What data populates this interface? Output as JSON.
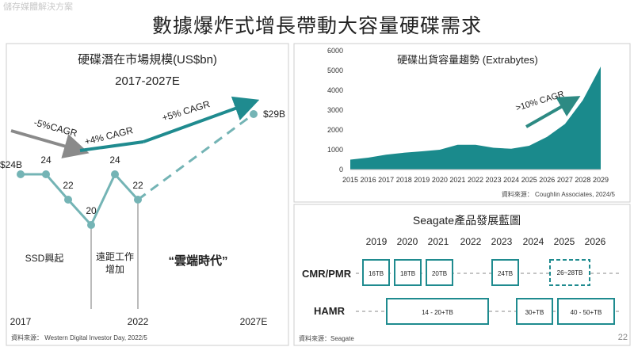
{
  "header": {
    "corner_label": "儲存媒體解決方案",
    "title": "數據爆炸式增長帶動大容量硬碟需求",
    "page_number": "22"
  },
  "colors": {
    "teal_line": "#74b4b5",
    "teal_dark": "#1f8b8f",
    "teal_area": "#1a8a8c",
    "gray_arrow": "#8a8a8a",
    "border": "#cccccc"
  },
  "left_chart": {
    "title": "硬碟潛在市場規模(US$bn)",
    "subtitle": "2017-2027E",
    "annotations": {
      "cagr_neg": "-5%CAGR",
      "cagr_pos4": "+4% CAGR",
      "cagr_pos5": "+5% CAGR",
      "ssd": "SSD興起",
      "remote_line1": "遠距工作",
      "remote_line2": "增加",
      "cloud": "“雲端時代”"
    },
    "x_labels": [
      "2017",
      "2022",
      "2027E"
    ],
    "source": "資料來源： Western Digital Investor Day, 2022/5"
  },
  "right_chart": {
    "title": "硬碟出貨容量趨勢 (Extrabytes)",
    "cagr_label": ">10% CAGR",
    "source": "資料來源： Coughlin Associates, 2024/5"
  },
  "roadmap": {
    "title": "Seagate產品發展藍圖",
    "years": [
      "2019",
      "2020",
      "2021",
      "2022",
      "2023",
      "2024",
      "2025",
      "2026"
    ],
    "rows": [
      {
        "label": "CMR/PMR",
        "items": [
          "16TB",
          "18TB",
          "20TB",
          "24TB",
          "26~28TB"
        ]
      },
      {
        "label": "HAMR",
        "items": [
          "14 - 20+TB",
          "30+TB",
          "40 - 50+TB"
        ]
      }
    ],
    "source": "資料來源：Seagate"
  },
  "chart_data": [
    {
      "type": "line",
      "title": "硬碟潛在市場規模(US$bn)",
      "subtitle": "2017-2027E",
      "series": [
        {
          "name": "",
          "points": [
            {
              "label": "$24B",
              "value": 24
            },
            {
              "label": "24",
              "value": 24
            },
            {
              "label": "22",
              "value": 22
            },
            {
              "label": "20",
              "value": 20
            },
            {
              "label": "24",
              "value": 24
            },
            {
              "label": "22",
              "value": 22
            }
          ]
        },
        {
          "name": "",
          "style": "dashed",
          "points": [
            {
              "label": "22",
              "value": 22
            },
            {
              "label": "$29B",
              "value": 29
            }
          ]
        }
      ],
      "x_ticks": [
        "2017",
        "2022",
        "2027E"
      ]
    },
    {
      "type": "area",
      "title": "硬碟出貨容量趨勢 (Extrabytes)",
      "categories": [
        "2015",
        "2016",
        "2017",
        "2018",
        "2019",
        "2020",
        "2021",
        "2022",
        "2023",
        "2024",
        "2025",
        "2026",
        "2027",
        "2028",
        "2029"
      ],
      "values": [
        500,
        600,
        750,
        850,
        920,
        1000,
        1250,
        1250,
        1100,
        1050,
        1200,
        1650,
        2300,
        3500,
        5200
      ],
      "ylim": [
        0,
        6000
      ],
      "yticks": [
        0,
        1000,
        2000,
        3000,
        4000,
        5000,
        6000
      ]
    }
  ]
}
